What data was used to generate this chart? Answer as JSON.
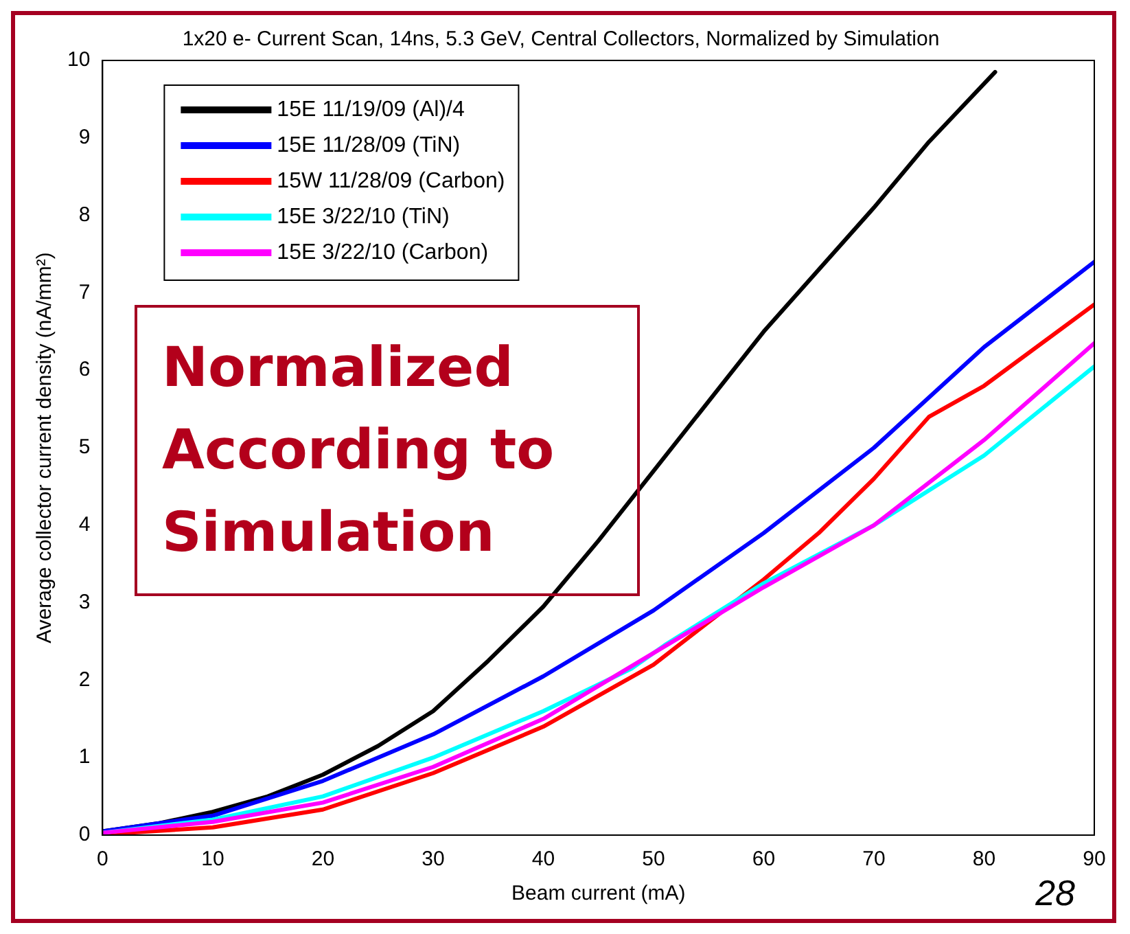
{
  "chart_data": {
    "type": "line",
    "title": "1x20 e- Current Scan, 14ns, 5.3 GeV, Central Collectors, Normalized by Simulation",
    "xlabel": "Beam current (mA)",
    "ylabel": "Average collector current density (nA/mm²)",
    "xlim": [
      0,
      90
    ],
    "xticks": [
      0,
      10,
      20,
      30,
      40,
      50,
      60,
      70,
      80,
      90
    ],
    "ylim": [
      0,
      10
    ],
    "yticks": [
      0,
      1,
      2,
      3,
      4,
      5,
      6,
      7,
      8,
      9,
      10
    ],
    "grid": false,
    "legend": "top left",
    "marker": "none",
    "line_style": "solid",
    "annotations": [
      "Normalized According to Simulation",
      "28"
    ],
    "series": [
      {
        "name": "15E 11/19/09 (Al)/4",
        "color": "#000000",
        "x": [
          0,
          5,
          10,
          15,
          20,
          25,
          30,
          35,
          40,
          45,
          50,
          55,
          60,
          65,
          70,
          75,
          81
        ],
        "values": [
          0.05,
          0.15,
          0.3,
          0.5,
          0.78,
          1.15,
          1.6,
          2.25,
          2.95,
          3.8,
          4.7,
          5.6,
          6.5,
          7.3,
          8.1,
          8.95,
          9.85
        ]
      },
      {
        "name": "15E 11/28/09 (TiN)",
        "color": "#0000ff",
        "x": [
          0,
          10,
          20,
          30,
          40,
          50,
          60,
          70,
          80,
          90
        ],
        "values": [
          0.05,
          0.25,
          0.7,
          1.3,
          2.05,
          2.9,
          3.9,
          5.0,
          6.3,
          7.4
        ]
      },
      {
        "name": "15W 11/28/09 (Carbon)",
        "color": "#ff0000",
        "x": [
          0,
          10,
          20,
          30,
          40,
          50,
          60,
          65,
          70,
          75,
          80,
          90
        ],
        "values": [
          0.01,
          0.1,
          0.33,
          0.8,
          1.4,
          2.2,
          3.3,
          3.9,
          4.6,
          5.4,
          5.8,
          6.85
        ]
      },
      {
        "name": "15E 3/22/10 (TiN)",
        "color": "#00ffff",
        "x": [
          0,
          10,
          20,
          30,
          40,
          48,
          51,
          60,
          70,
          80,
          90
        ],
        "values": [
          0.03,
          0.2,
          0.5,
          1.0,
          1.6,
          2.15,
          2.45,
          3.25,
          4.0,
          4.9,
          6.05
        ]
      },
      {
        "name": "15E 3/22/10 (Carbon)",
        "color": "#ff00ff",
        "x": [
          0,
          10,
          20,
          30,
          40,
          50,
          60,
          70,
          80,
          90
        ],
        "values": [
          0.03,
          0.17,
          0.42,
          0.88,
          1.5,
          2.35,
          3.2,
          4.0,
          5.1,
          6.35
        ]
      }
    ]
  }
}
